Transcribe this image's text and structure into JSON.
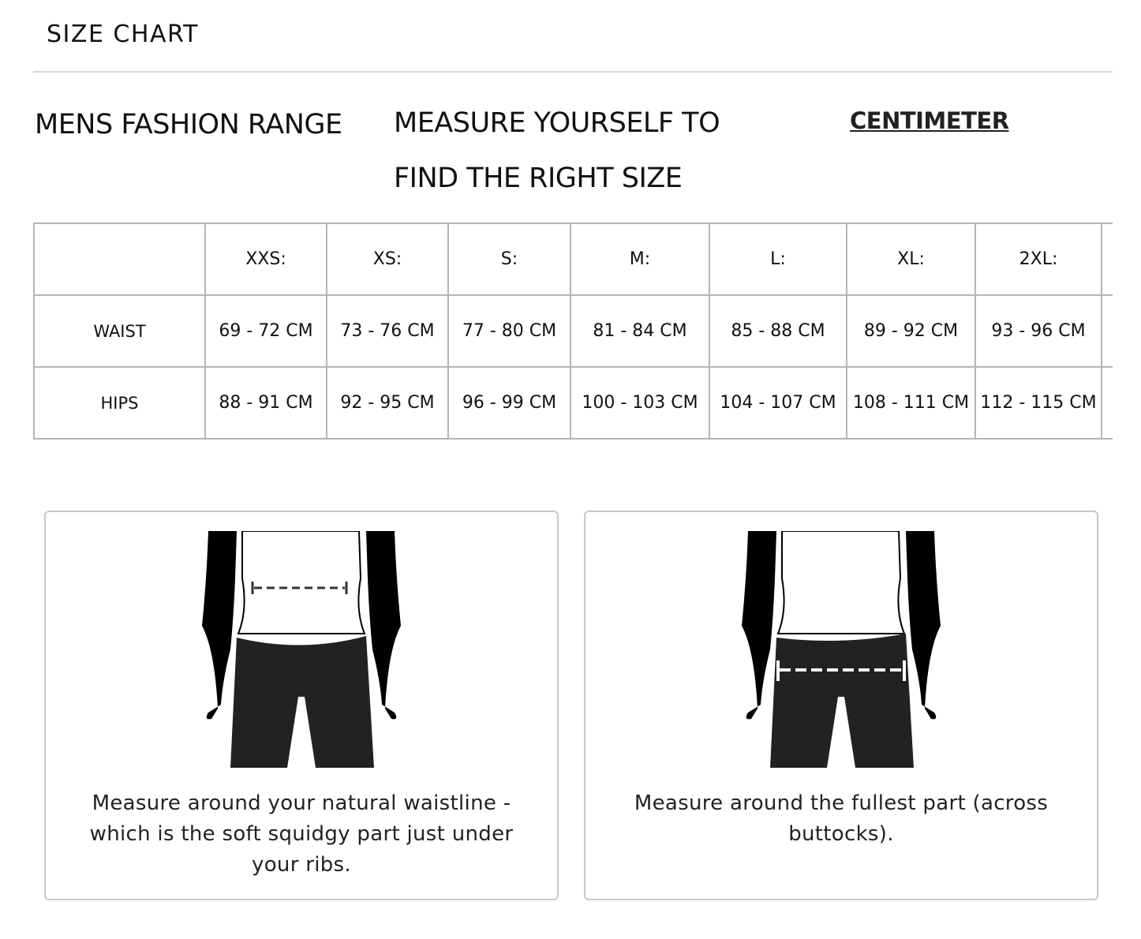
{
  "header": {
    "title": "SIZE CHART"
  },
  "intro": {
    "range_title": "MENS FASHION RANGE",
    "instruction": "MEASURE YOURSELF TO FIND THE RIGHT SIZE",
    "unit_link": "CENTIMETER"
  },
  "table": {
    "columns": [
      "",
      "XXS:",
      "XS:",
      "S:",
      "M:",
      "L:",
      "XL:",
      "2XL:",
      ""
    ],
    "rows": [
      {
        "label": "WAIST",
        "values": [
          "69 - 72 CM",
          "73 - 76 CM",
          "77 - 80 CM",
          "81 - 84 CM",
          "85 - 88 CM",
          "89 - 92 CM",
          "93 - 96 CM"
        ]
      },
      {
        "label": "HIPS",
        "values": [
          "88 - 91 CM",
          "92 - 95 CM",
          "96 - 99 CM",
          "100 - 103 CM",
          "104 - 107 CM",
          "108 - 111 CM",
          "112 - 115 CM"
        ]
      }
    ]
  },
  "guides": [
    {
      "icon": "waist-measure-illustration",
      "text": "Measure around your natural waistline - which is the soft squidgy part just under your ribs."
    },
    {
      "icon": "hips-measure-illustration",
      "text": "Measure around the fullest part (across buttocks)."
    }
  ]
}
